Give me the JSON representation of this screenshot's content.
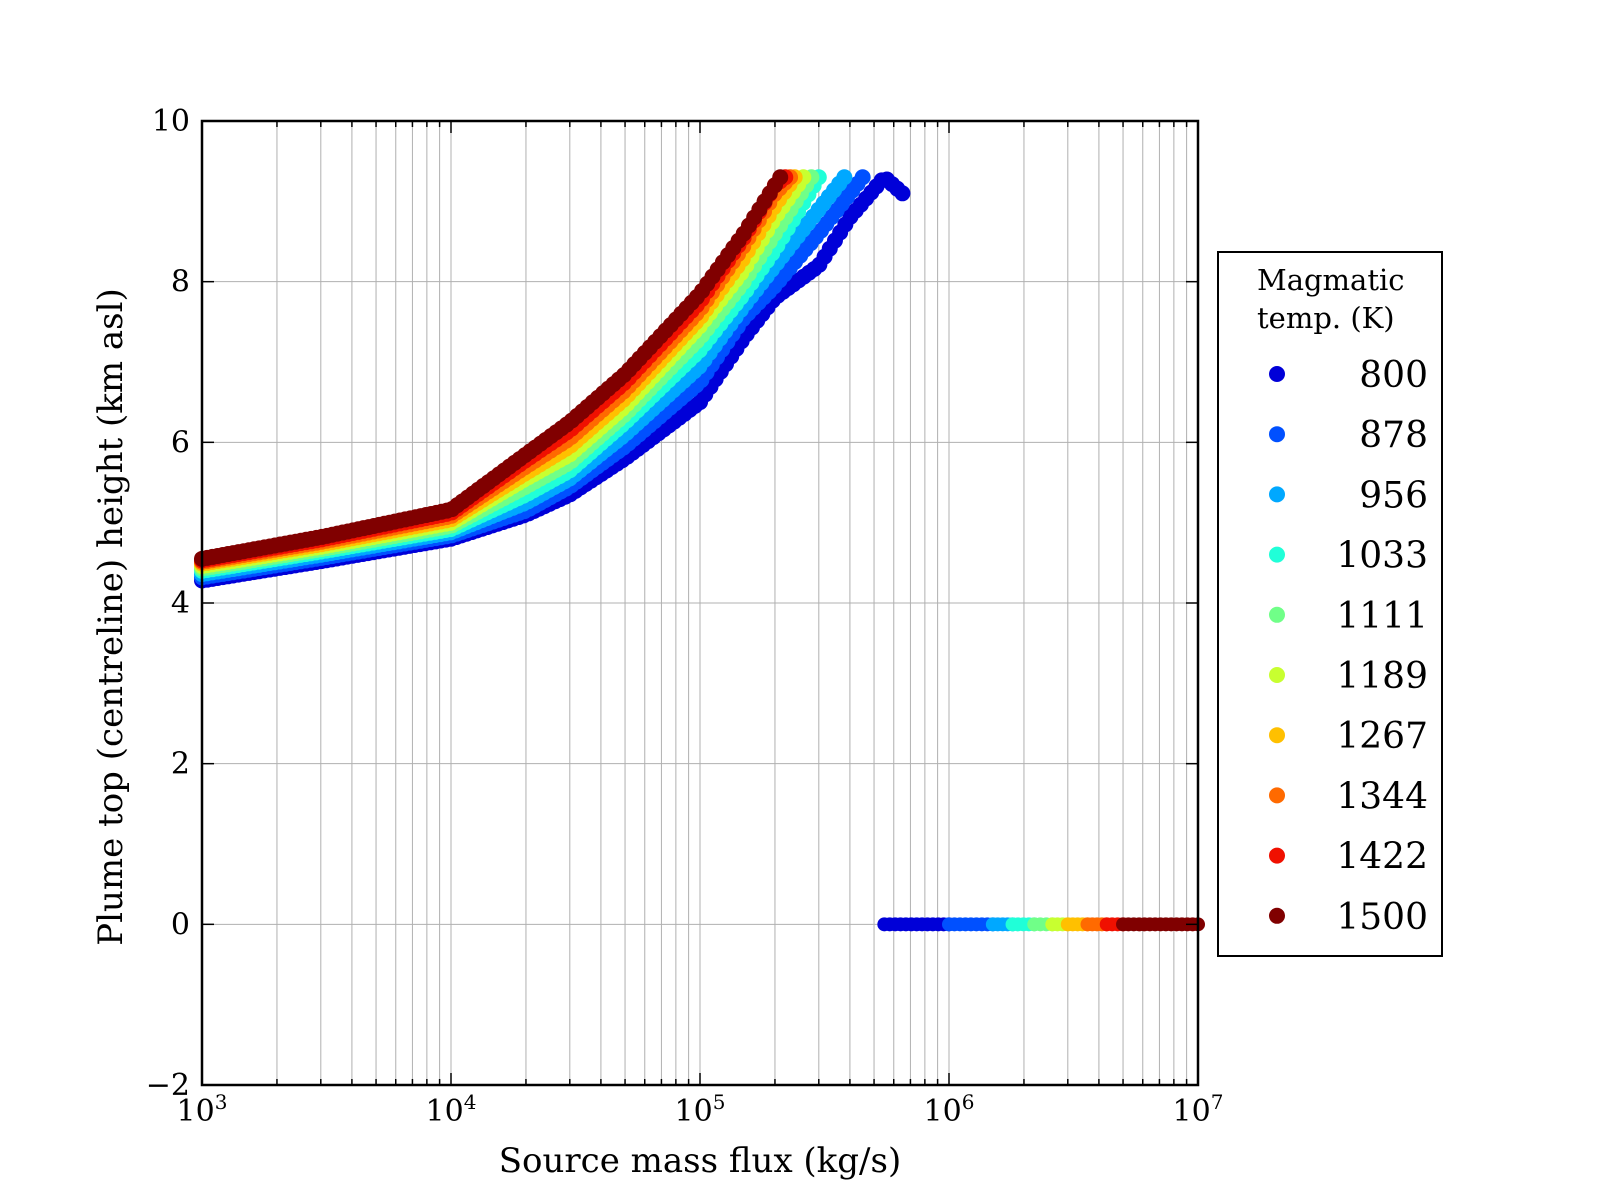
{
  "chart_data": {
    "type": "scatter",
    "title": "",
    "xlabel": "Source mass flux (kg/s)",
    "ylabel": "Plume top (centreline) height (km asl)",
    "xscale": "log",
    "xlim": [
      1000,
      10000000
    ],
    "ylim": [
      -2,
      10
    ],
    "x_ticks": [
      {
        "base": "10",
        "exp": "3",
        "value": 1000
      },
      {
        "base": "10",
        "exp": "4",
        "value": 10000
      },
      {
        "base": "10",
        "exp": "5",
        "value": 100000
      },
      {
        "base": "10",
        "exp": "6",
        "value": 1000000
      },
      {
        "base": "10",
        "exp": "7",
        "value": 10000000
      }
    ],
    "y_ticks": [
      "−2",
      "0",
      "2",
      "4",
      "6",
      "8",
      "10"
    ],
    "grid": true,
    "legend": {
      "title": [
        "Magmatic",
        "temp. (K)"
      ],
      "position": "right-outside"
    },
    "series": [
      {
        "name": "800",
        "color": "#0000d8",
        "points": [
          [
            1000,
            4.28
          ],
          [
            3000,
            4.52
          ],
          [
            10000,
            4.8
          ],
          [
            20000,
            5.1
          ],
          [
            30000,
            5.35
          ],
          [
            50000,
            5.8
          ],
          [
            100000,
            6.5
          ],
          [
            150000,
            7.3
          ],
          [
            200000,
            7.8
          ],
          [
            300000,
            8.2
          ],
          [
            400000,
            8.8
          ],
          [
            550000,
            9.3
          ],
          [
            650000,
            9.1
          ]
        ],
        "zero_range": [
          550000,
          1000000
        ]
      },
      {
        "name": "878",
        "color": "#0050ff",
        "points": [
          [
            1000,
            4.32
          ],
          [
            3000,
            4.56
          ],
          [
            10000,
            4.84
          ],
          [
            20000,
            5.15
          ],
          [
            30000,
            5.45
          ],
          [
            50000,
            5.95
          ],
          [
            100000,
            6.75
          ],
          [
            150000,
            7.55
          ],
          [
            200000,
            7.95
          ],
          [
            300000,
            8.6
          ],
          [
            450000,
            9.3
          ]
        ],
        "zero_range": [
          1000000,
          1500000
        ]
      },
      {
        "name": "956",
        "color": "#00a8ff",
        "points": [
          [
            1000,
            4.36
          ],
          [
            3000,
            4.6
          ],
          [
            10000,
            4.88
          ],
          [
            20000,
            5.25
          ],
          [
            30000,
            5.55
          ],
          [
            50000,
            6.1
          ],
          [
            100000,
            6.95
          ],
          [
            150000,
            7.7
          ],
          [
            200000,
            8.2
          ],
          [
            300000,
            8.9
          ],
          [
            380000,
            9.3
          ]
        ],
        "zero_range": [
          1500000,
          1800000
        ]
      },
      {
        "name": "1033",
        "color": "#20ffd8",
        "points": [
          [
            1000,
            4.4
          ],
          [
            3000,
            4.64
          ],
          [
            10000,
            4.92
          ],
          [
            20000,
            5.35
          ],
          [
            30000,
            5.65
          ],
          [
            50000,
            6.25
          ],
          [
            100000,
            7.15
          ],
          [
            150000,
            7.85
          ],
          [
            200000,
            8.4
          ],
          [
            300000,
            9.3
          ]
        ],
        "zero_range": [
          1800000,
          2200000
        ]
      },
      {
        "name": "1111",
        "color": "#70ff88",
        "points": [
          [
            1000,
            4.43
          ],
          [
            3000,
            4.67
          ],
          [
            10000,
            4.96
          ],
          [
            20000,
            5.45
          ],
          [
            30000,
            5.75
          ],
          [
            50000,
            6.35
          ],
          [
            100000,
            7.3
          ],
          [
            150000,
            8.0
          ],
          [
            200000,
            8.6
          ],
          [
            280000,
            9.3
          ]
        ],
        "zero_range": [
          2200000,
          2600000
        ]
      },
      {
        "name": "1189",
        "color": "#c8ff30",
        "points": [
          [
            1000,
            4.46
          ],
          [
            3000,
            4.7
          ],
          [
            10000,
            5.0
          ],
          [
            20000,
            5.55
          ],
          [
            30000,
            5.85
          ],
          [
            50000,
            6.45
          ],
          [
            100000,
            7.45
          ],
          [
            150000,
            8.15
          ],
          [
            200000,
            8.8
          ],
          [
            260000,
            9.3
          ]
        ],
        "zero_range": [
          2600000,
          3000000
        ]
      },
      {
        "name": "1267",
        "color": "#ffc000",
        "points": [
          [
            1000,
            4.49
          ],
          [
            3000,
            4.73
          ],
          [
            10000,
            5.04
          ],
          [
            20000,
            5.62
          ],
          [
            30000,
            5.95
          ],
          [
            50000,
            6.55
          ],
          [
            100000,
            7.55
          ],
          [
            150000,
            8.3
          ],
          [
            200000,
            8.95
          ],
          [
            240000,
            9.3
          ]
        ],
        "zero_range": [
          3000000,
          3600000
        ]
      },
      {
        "name": "1344",
        "color": "#ff6a00",
        "points": [
          [
            1000,
            4.51
          ],
          [
            3000,
            4.76
          ],
          [
            10000,
            5.08
          ],
          [
            20000,
            5.7
          ],
          [
            30000,
            6.05
          ],
          [
            50000,
            6.65
          ],
          [
            100000,
            7.65
          ],
          [
            150000,
            8.45
          ],
          [
            200000,
            9.1
          ],
          [
            230000,
            9.3
          ]
        ],
        "zero_range": [
          3600000,
          4300000
        ]
      },
      {
        "name": "1422",
        "color": "#f01000",
        "points": [
          [
            1000,
            4.53
          ],
          [
            3000,
            4.79
          ],
          [
            10000,
            5.12
          ],
          [
            20000,
            5.78
          ],
          [
            30000,
            6.15
          ],
          [
            50000,
            6.75
          ],
          [
            100000,
            7.75
          ],
          [
            150000,
            8.55
          ],
          [
            200000,
            9.2
          ],
          [
            220000,
            9.3
          ]
        ],
        "zero_range": [
          4300000,
          5000000
        ]
      },
      {
        "name": "1500",
        "color": "#800000",
        "points": [
          [
            1000,
            4.55
          ],
          [
            3000,
            4.82
          ],
          [
            10000,
            5.16
          ],
          [
            20000,
            5.85
          ],
          [
            30000,
            6.25
          ],
          [
            50000,
            6.85
          ],
          [
            100000,
            7.85
          ],
          [
            150000,
            8.6
          ],
          [
            200000,
            9.2
          ],
          [
            210000,
            9.3
          ]
        ],
        "zero_range": [
          5000000,
          10000000
        ]
      }
    ]
  }
}
